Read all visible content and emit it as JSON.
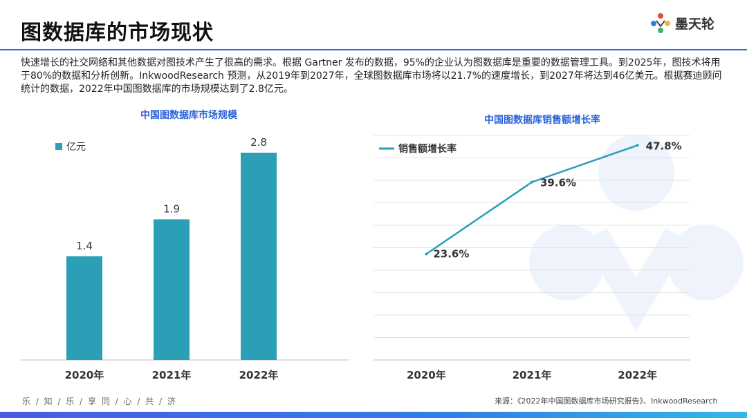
{
  "page": {
    "title": "图数据库的市场现状",
    "brand": "墨天轮",
    "intro": "快速增长的社交网络和其他数据对图技术产生了很高的需求。根据 Gartner 发布的数据，95%的企业认为图数据库是重要的数据管理工具。到2025年，图技术将用于80%的数据和分析创新。InkwoodResearch 预测，从2019年到2027年，全球图数据库市场将以21.7%的速度增长，到2027年将达到46亿美元。根据赛迪顾问统计的数据，2022年中国图数据库的市场规模达到了2.8亿元。",
    "footer_left": "乐 / 知 / 乐 / 享     同 / 心 / 共 / 济",
    "footer_source": "来源：《2022年中国图数据库市场研究报告》、InkwoodResearch",
    "accent_color": "#2a9fb5",
    "title_rule_color": "#1f6fe5"
  },
  "chart_data": [
    {
      "type": "bar",
      "title": "中国图数据库市场规模",
      "categories": [
        "2020年",
        "2021年",
        "2022年"
      ],
      "series": [
        {
          "name": "亿元",
          "values": [
            1.4,
            1.9,
            2.8
          ],
          "value_labels": [
            "1.4",
            "1.9",
            "2.8"
          ]
        }
      ],
      "ylim": [
        0,
        2.8
      ],
      "legend": "top-left",
      "grid": false,
      "color": "#2a9fb5"
    },
    {
      "type": "line",
      "title": "中国图数据库销售额增长率",
      "categories": [
        "2020年",
        "2021年",
        "2022年"
      ],
      "series": [
        {
          "name": "销售额增长率",
          "values": [
            23.6,
            39.6,
            47.8
          ],
          "value_labels": [
            "23.6%",
            "39.6%",
            "47.8%"
          ]
        }
      ],
      "ylim": [
        0,
        50
      ],
      "legend": "top-left",
      "grid": true,
      "color": "#2a9fb5"
    }
  ]
}
